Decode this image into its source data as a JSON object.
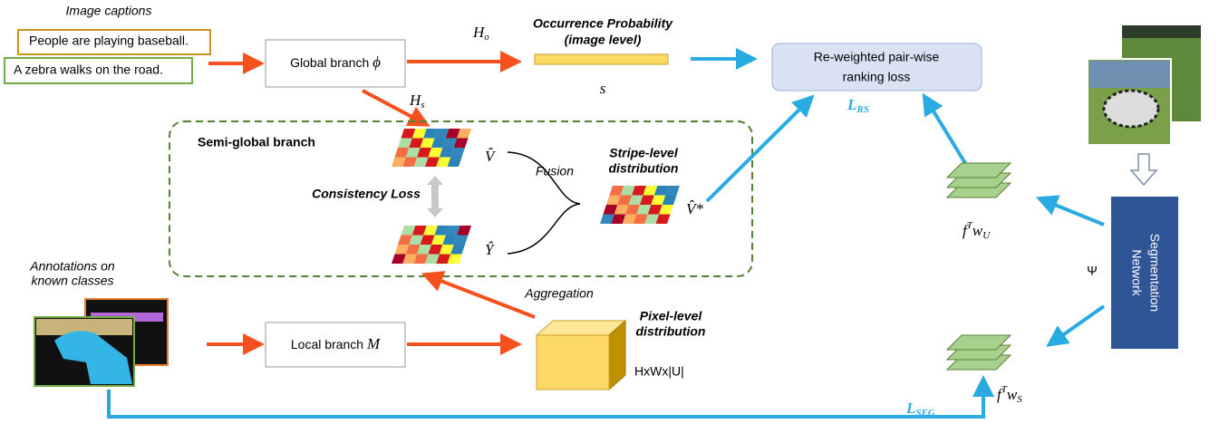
{
  "captions": {
    "title": "Image captions",
    "items": [
      "People are playing baseball.",
      "A zebra walks on the road."
    ]
  },
  "global_branch": {
    "label": "Global branch",
    "symbol": "ϕ"
  },
  "h_o": {
    "base": "H",
    "sub": "o"
  },
  "occurrence": {
    "lines": [
      "Occurrence Probability",
      "(image level)"
    ],
    "symbol": "s"
  },
  "ranking_loss": {
    "lines": [
      "Re-weighted pair-wise",
      "ranking loss"
    ],
    "loss": {
      "base": "L",
      "sub": "RS"
    }
  },
  "h_s": {
    "base": "H",
    "sub": "s"
  },
  "semi_global": {
    "title": "Semi-global branch",
    "v_hat": "V̂",
    "y_hat": "Ŷ",
    "consistency": "Consistency Loss",
    "fusion": "Fusion",
    "stripe": [
      "Stripe-level",
      "distribution"
    ],
    "v_star": "V̂*"
  },
  "annotations": {
    "lines": [
      "Annotations on",
      "known classes"
    ]
  },
  "local_branch": {
    "label": "Local branch",
    "symbol": "M"
  },
  "aggregation": "Aggregation",
  "pixel": {
    "lines": [
      "Pixel-level",
      "distribution"
    ],
    "shape": "HxWx|U|"
  },
  "f_wu": {
    "f": "f",
    "sup": "T",
    "w": "w",
    "sub": "U"
  },
  "f_ws": {
    "f": "f",
    "sup": "T",
    "w": "w",
    "sub": "S"
  },
  "psi": "Ψ",
  "segmentation": {
    "lines": [
      "Segmentation",
      "Network"
    ]
  },
  "l_seg": {
    "base": "L",
    "sub": "SEG"
  }
}
